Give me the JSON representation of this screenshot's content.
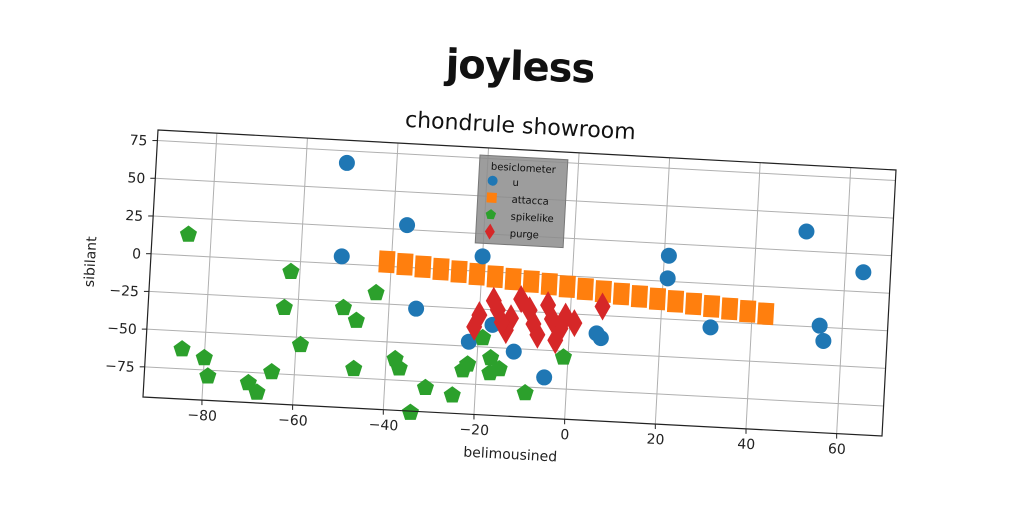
{
  "figure": {
    "suptitle": "joyless"
  },
  "chart_data": {
    "type": "scatter",
    "title": "chondrule showroom",
    "xlabel": "belimousined",
    "ylabel": "sibilant",
    "xlim": [
      -93,
      70
    ],
    "ylim": [
      -95,
      82
    ],
    "x_ticks": [
      -80,
      -60,
      -40,
      -20,
      0,
      20,
      40,
      60
    ],
    "y_ticks": [
      -75,
      -50,
      -25,
      0,
      25,
      50,
      75
    ],
    "grid": true,
    "legend": {
      "title": "besiclometer",
      "placement": "upper-center"
    },
    "series": [
      {
        "name": "u",
        "marker": "circle",
        "color": "#1f77b4",
        "points": [
          [
            -51,
            67
          ],
          [
            -37,
            28
          ],
          [
            -51,
            5
          ],
          [
            -34,
            -27
          ],
          [
            -20,
            10
          ],
          [
            -22,
            -47
          ],
          [
            -17,
            -35
          ],
          [
            -12,
            -52
          ],
          [
            -5,
            -68
          ],
          [
            6,
            -37
          ],
          [
            7,
            -40
          ],
          [
            21,
            17
          ],
          [
            21,
            2
          ],
          [
            31,
            -29
          ],
          [
            51,
            38
          ],
          [
            55,
            -24
          ],
          [
            56,
            -34
          ],
          [
            64,
            13
          ]
        ]
      },
      {
        "name": "attacca",
        "marker": "square",
        "color": "#ff7f0e",
        "points": [
          [
            -41,
            3
          ],
          [
            -37,
            2
          ],
          [
            -33,
            1
          ],
          [
            -29,
            0
          ],
          [
            -25,
            -1
          ],
          [
            -21,
            -2
          ],
          [
            -17,
            -3
          ],
          [
            -13,
            -4
          ],
          [
            -9,
            -5
          ],
          [
            -5,
            -6
          ],
          [
            -1,
            -7
          ],
          [
            3,
            -8
          ],
          [
            7,
            -9
          ],
          [
            11,
            -10
          ],
          [
            15,
            -11
          ],
          [
            19,
            -12
          ],
          [
            23,
            -13
          ],
          [
            27,
            -14
          ],
          [
            31,
            -15
          ],
          [
            35,
            -16
          ],
          [
            39,
            -17
          ],
          [
            43,
            -18
          ]
        ]
      },
      {
        "name": "spikelike",
        "marker": "pentagon",
        "color": "#2ca02c",
        "points": [
          [
            -85,
            14
          ],
          [
            -85,
            -62
          ],
          [
            -80,
            -67
          ],
          [
            -79,
            -79
          ],
          [
            -70,
            -82
          ],
          [
            -68,
            -88
          ],
          [
            -65,
            -74
          ],
          [
            -62,
            -7
          ],
          [
            -63,
            -31
          ],
          [
            -59,
            -55
          ],
          [
            -50,
            -29
          ],
          [
            -47,
            -37
          ],
          [
            -47,
            -69
          ],
          [
            -43,
            -18
          ],
          [
            -38,
            -61
          ],
          [
            -37,
            -67
          ],
          [
            -34,
            -96
          ],
          [
            -31,
            -79
          ],
          [
            -25,
            -83
          ],
          [
            -23,
            -66
          ],
          [
            -22,
            -62
          ],
          [
            -19,
            -44
          ],
          [
            -17,
            -57
          ],
          [
            -17,
            -67
          ],
          [
            -15,
            -64
          ],
          [
            -9,
            -79
          ],
          [
            -1,
            -54
          ]
        ]
      },
      {
        "name": "purge",
        "marker": "diamond",
        "color": "#d62728",
        "points": [
          [
            -20,
            -29
          ],
          [
            -21,
            -37
          ],
          [
            -17,
            -19
          ],
          [
            -16,
            -25
          ],
          [
            -13,
            -30
          ],
          [
            -14,
            -38
          ],
          [
            -11,
            -17
          ],
          [
            -9,
            -24
          ],
          [
            -8,
            -33
          ],
          [
            -7,
            -40
          ],
          [
            -5,
            -20
          ],
          [
            -4,
            -29
          ],
          [
            -2,
            -35
          ],
          [
            -1,
            -27
          ],
          [
            1,
            -31
          ],
          [
            -3,
            -43
          ],
          [
            7,
            -19
          ],
          [
            -15,
            -33
          ]
        ]
      }
    ]
  }
}
